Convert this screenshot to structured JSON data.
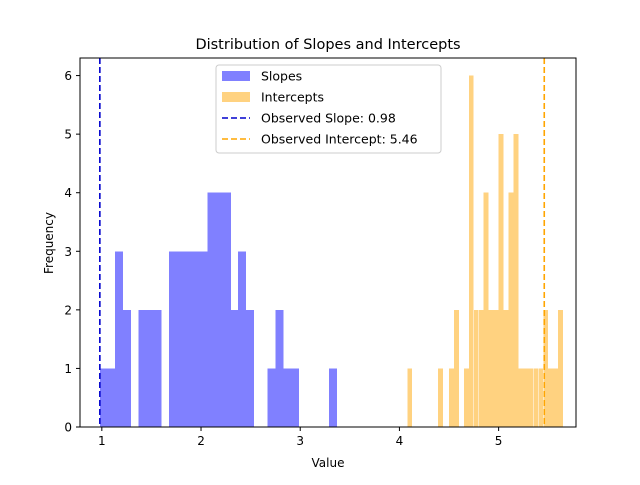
{
  "chart_data": {
    "type": "bar",
    "title": "Distribution of Slopes and Intercepts",
    "xlabel": "Value",
    "ylabel": "Frequency",
    "xlim": [
      0.78,
      5.78
    ],
    "ylim": [
      0,
      6.3
    ],
    "xticks": [
      1,
      2,
      3,
      4,
      5
    ],
    "yticks": [
      0,
      1,
      2,
      3,
      4,
      5,
      6
    ],
    "grid": false,
    "legend_position": "upper center",
    "series": [
      {
        "name": "Slopes",
        "color": "#8080ff",
        "bin_width": 0.0775,
        "bins": [
          {
            "x0": 0.98,
            "count": 1
          },
          {
            "x0": 1.0575,
            "count": 1
          },
          {
            "x0": 1.135,
            "count": 3
          },
          {
            "x0": 1.2125,
            "count": 2
          },
          {
            "x0": 1.3675,
            "count": 2
          },
          {
            "x0": 1.445,
            "count": 2
          },
          {
            "x0": 1.5225,
            "count": 2
          },
          {
            "x0": 1.6775,
            "count": 3
          },
          {
            "x0": 1.755,
            "count": 3
          },
          {
            "x0": 1.8325,
            "count": 3
          },
          {
            "x0": 1.91,
            "count": 3
          },
          {
            "x0": 1.9875,
            "count": 3
          },
          {
            "x0": 2.065,
            "count": 4
          },
          {
            "x0": 2.1425,
            "count": 4
          },
          {
            "x0": 2.22,
            "count": 4
          },
          {
            "x0": 2.2975,
            "count": 2
          },
          {
            "x0": 2.375,
            "count": 3
          },
          {
            "x0": 2.4525,
            "count": 2
          },
          {
            "x0": 2.6725,
            "count": 1
          },
          {
            "x0": 2.75,
            "count": 2
          },
          {
            "x0": 2.8275,
            "count": 1
          },
          {
            "x0": 2.905,
            "count": 1
          },
          {
            "x0": 3.29,
            "count": 1
          }
        ]
      },
      {
        "name": "Intercepts",
        "color": "#ffd280",
        "bin_width": 0.046,
        "bins": [
          {
            "x0": 4.08,
            "count": 1
          },
          {
            "x0": 4.39,
            "count": 1
          },
          {
            "x0": 4.5,
            "count": 1
          },
          {
            "x0": 4.55,
            "count": 2
          },
          {
            "x0": 4.65,
            "count": 1
          },
          {
            "x0": 4.7,
            "count": 6
          },
          {
            "x0": 4.75,
            "count": 2
          },
          {
            "x0": 4.8,
            "count": 2
          },
          {
            "x0": 4.85,
            "count": 4
          },
          {
            "x0": 4.9,
            "count": 2
          },
          {
            "x0": 4.95,
            "count": 2
          },
          {
            "x0": 5.0,
            "count": 5
          },
          {
            "x0": 5.05,
            "count": 2
          },
          {
            "x0": 5.1,
            "count": 4
          },
          {
            "x0": 5.15,
            "count": 5
          },
          {
            "x0": 5.2,
            "count": 1
          },
          {
            "x0": 5.25,
            "count": 1
          },
          {
            "x0": 5.3,
            "count": 1
          },
          {
            "x0": 5.35,
            "count": 1
          },
          {
            "x0": 5.4,
            "count": 1
          },
          {
            "x0": 5.45,
            "count": 2
          },
          {
            "x0": 5.5,
            "count": 1
          },
          {
            "x0": 5.55,
            "count": 1
          },
          {
            "x0": 5.6,
            "count": 2
          }
        ]
      }
    ],
    "reference_lines": [
      {
        "label": "Observed Slope: 0.98",
        "x": 0.98,
        "color": "#0000cc",
        "style": "dashed"
      },
      {
        "label": "Observed Intercept: 5.46",
        "x": 5.46,
        "color": "#ffa500",
        "style": "dashed"
      }
    ]
  }
}
